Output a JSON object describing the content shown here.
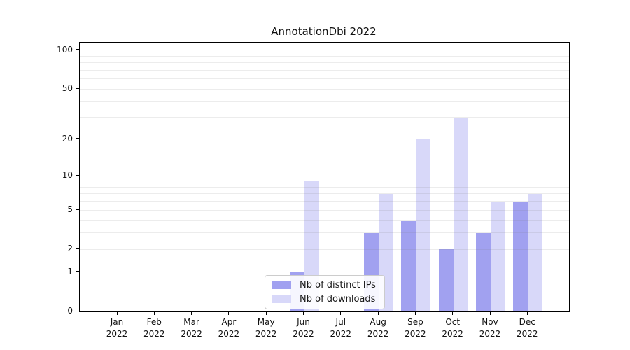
{
  "figure": {
    "title": "AnnotationDbi 2022",
    "background_color": "#ffffff",
    "axis_color": "#000000",
    "text_color": "#111111"
  },
  "chart_data": {
    "type": "bar",
    "title": "AnnotationDbi 2022",
    "x": {
      "categories": [
        "Jan",
        "Feb",
        "Mar",
        "Apr",
        "May",
        "Jun",
        "Jul",
        "Aug",
        "Sep",
        "Oct",
        "Nov",
        "Dec"
      ],
      "year_label": "2022"
    },
    "y": {
      "scale": "log10(1+x)",
      "tick_labels": [
        0,
        1,
        2,
        5,
        10,
        20,
        50,
        100
      ],
      "ylim": [
        0,
        115
      ],
      "major_gridlines": [
        10,
        100
      ],
      "minor_gridlines": [
        1,
        2,
        3,
        4,
        5,
        6,
        7,
        8,
        9,
        20,
        30,
        40,
        50,
        60,
        70,
        80,
        90
      ],
      "grid": true
    },
    "series": [
      {
        "name": "Nb of distinct IPs",
        "color": "#a1a1f0",
        "values": [
          0,
          0,
          0,
          0,
          0,
          1,
          0,
          3,
          4,
          2,
          3,
          6
        ]
      },
      {
        "name": "Nb of downloads",
        "color": "#d8d8f9",
        "values": [
          0,
          0,
          0,
          0,
          0,
          9,
          0,
          7,
          20,
          30,
          6,
          7
        ]
      }
    ],
    "legend": {
      "position": "inside-bottom-center",
      "entries": [
        "Nb of distinct IPs",
        "Nb of downloads"
      ]
    }
  }
}
